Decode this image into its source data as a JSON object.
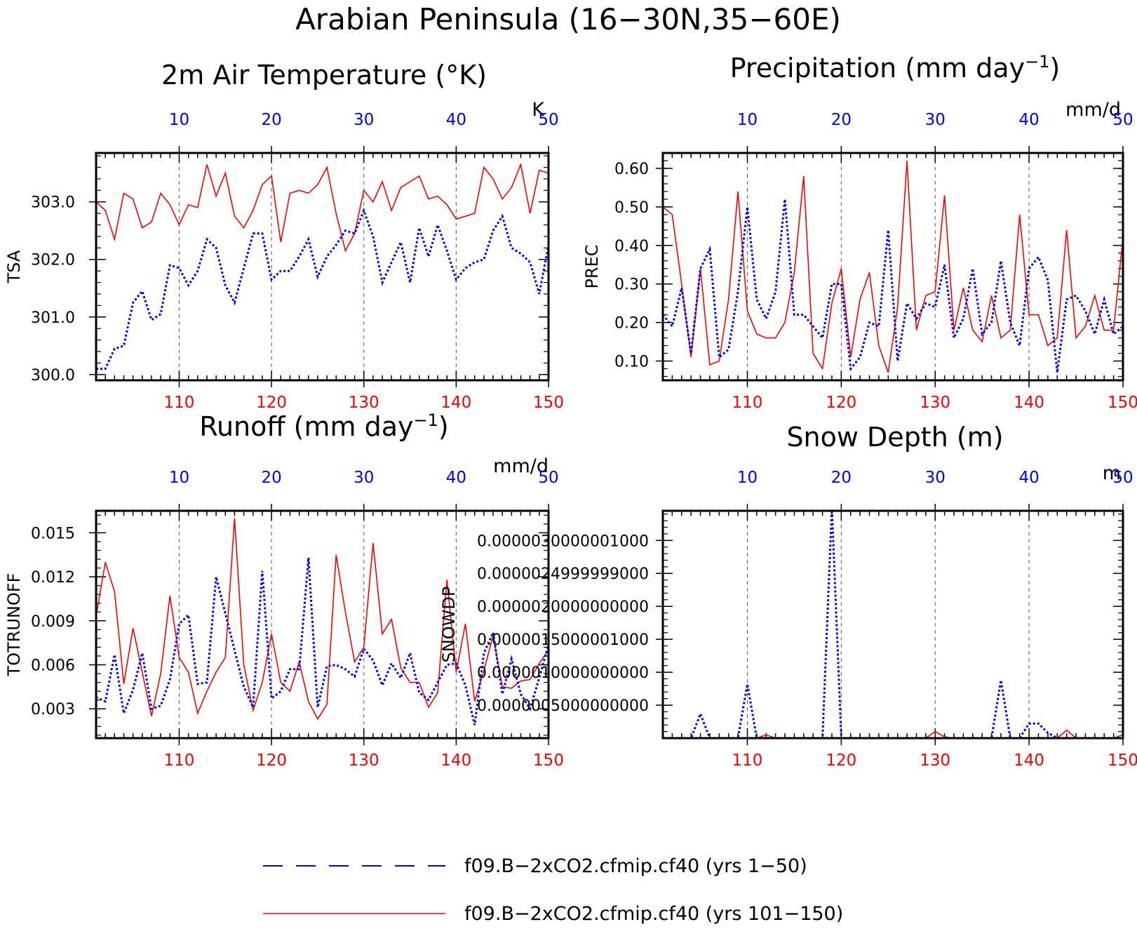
{
  "figure": {
    "title": "Arabian Peninsula (16−30N,35−60E)",
    "colors": {
      "series_a": "#0000ff",
      "series_b": "#ff0000",
      "axes": "#000000"
    }
  },
  "legend": {
    "items": [
      {
        "label": "f09.B−2xCO2.cfmip.cf40 (yrs 1−50)",
        "color": "#0000ff",
        "style": "dashed"
      },
      {
        "label": "f09.B−2xCO2.cfmip.cf40 (yrs 101−150)",
        "color": "#ff0000",
        "style": "solid"
      }
    ]
  },
  "chart_data": [
    {
      "type": "line",
      "title": "2m Air Temperature (°K)",
      "ylabel": "TSA",
      "units": "K",
      "x_bottom": {
        "ticks": [
          "110",
          "120",
          "130",
          "140",
          "150"
        ],
        "range": [
          101,
          150
        ]
      },
      "x_top": {
        "ticks": [
          "10",
          "20",
          "30",
          "40",
          "50"
        ],
        "range": [
          1,
          50
        ]
      },
      "ylim": [
        299.9,
        303.85
      ],
      "yticks": [
        "300.0",
        "301.0",
        "302.0",
        "303.0"
      ],
      "grid": "vertical dashed",
      "series": [
        {
          "values": [
            300.1,
            300.1,
            300.45,
            300.5,
            301.25,
            301.45,
            300.95,
            301.05,
            301.9,
            301.85,
            301.55,
            301.8,
            302.35,
            302.2,
            301.55,
            301.25,
            301.85,
            302.45,
            302.45,
            301.65,
            301.8,
            301.8,
            302.05,
            302.35,
            301.7,
            302.05,
            302.25,
            302.5,
            302.45,
            302.85,
            302.4,
            301.6,
            301.95,
            302.3,
            301.6,
            302.55,
            302.05,
            302.6,
            302.15,
            301.65,
            301.85,
            301.95,
            302.0,
            302.5,
            302.75,
            302.2,
            302.1,
            301.95,
            301.4,
            302.25
          ]
        },
        {
          "values": [
            303.0,
            302.85,
            302.35,
            303.15,
            303.05,
            302.55,
            302.65,
            303.15,
            302.95,
            302.6,
            302.95,
            302.9,
            303.65,
            303.1,
            303.5,
            302.75,
            302.55,
            302.85,
            303.3,
            303.45,
            302.3,
            303.15,
            303.2,
            303.15,
            303.3,
            303.6,
            302.8,
            302.15,
            302.45,
            303.2,
            303.0,
            303.35,
            302.85,
            303.25,
            303.35,
            303.45,
            303.05,
            303.1,
            302.95,
            302.7,
            302.75,
            302.8,
            303.6,
            303.4,
            303.05,
            303.25,
            303.65,
            302.8,
            303.55,
            303.5
          ]
        }
      ]
    },
    {
      "type": "line",
      "title": "Precipitation (mm day",
      "title_sup": "−1",
      "title_end": ")",
      "ylabel": "PREC",
      "units": "mm/d",
      "x_bottom": {
        "ticks": [
          "110",
          "120",
          "130",
          "140",
          "150"
        ],
        "range": [
          101,
          150
        ]
      },
      "x_top": {
        "ticks": [
          "10",
          "20",
          "30",
          "40",
          "50"
        ],
        "range": [
          1,
          50
        ]
      },
      "ylim": [
        0.05,
        0.64
      ],
      "yticks": [
        "0.10",
        "0.20",
        "0.30",
        "0.40",
        "0.50",
        "0.60"
      ],
      "grid": "vertical dashed",
      "series": [
        {
          "values": [
            0.22,
            0.19,
            0.29,
            0.12,
            0.34,
            0.39,
            0.11,
            0.13,
            0.28,
            0.5,
            0.26,
            0.21,
            0.28,
            0.52,
            0.22,
            0.22,
            0.19,
            0.16,
            0.3,
            0.3,
            0.08,
            0.11,
            0.2,
            0.19,
            0.44,
            0.1,
            0.25,
            0.21,
            0.25,
            0.24,
            0.35,
            0.16,
            0.21,
            0.34,
            0.17,
            0.2,
            0.36,
            0.2,
            0.14,
            0.34,
            0.37,
            0.31,
            0.07,
            0.26,
            0.27,
            0.23,
            0.17,
            0.26,
            0.17,
            0.19
          ]
        },
        {
          "values": [
            0.5,
            0.48,
            0.3,
            0.11,
            0.34,
            0.09,
            0.1,
            0.26,
            0.54,
            0.23,
            0.17,
            0.16,
            0.16,
            0.2,
            0.33,
            0.58,
            0.12,
            0.08,
            0.25,
            0.34,
            0.11,
            0.26,
            0.33,
            0.14,
            0.07,
            0.24,
            0.62,
            0.18,
            0.27,
            0.28,
            0.53,
            0.18,
            0.29,
            0.18,
            0.15,
            0.27,
            0.16,
            0.18,
            0.48,
            0.22,
            0.22,
            0.14,
            0.16,
            0.44,
            0.16,
            0.19,
            0.27,
            0.18,
            0.18,
            0.42
          ]
        }
      ]
    },
    {
      "type": "line",
      "title": "Runoff (mm day",
      "title_sup": "−1",
      "title_end": ")",
      "ylabel": "TOTRUNOFF",
      "units": "mm/d",
      "x_bottom": {
        "ticks": [
          "110",
          "120",
          "130",
          "140",
          "150"
        ],
        "range": [
          101,
          150
        ]
      },
      "x_top": {
        "ticks": [
          "10",
          "20",
          "30",
          "40",
          "50"
        ],
        "range": [
          1,
          50
        ]
      },
      "ylim": [
        0.001,
        0.0165
      ],
      "yticks": [
        "0.003",
        "0.006",
        "0.009",
        "0.012",
        "0.015"
      ],
      "grid": "vertical dashed",
      "series": [
        {
          "values": [
            0.0038,
            0.0035,
            0.0067,
            0.0027,
            0.0043,
            0.0068,
            0.003,
            0.0032,
            0.005,
            0.0088,
            0.0094,
            0.0047,
            0.0048,
            0.012,
            0.0095,
            0.007,
            0.0045,
            0.0031,
            0.0124,
            0.0037,
            0.0042,
            0.0057,
            0.0057,
            0.0133,
            0.0031,
            0.0059,
            0.006,
            0.0057,
            0.0052,
            0.0071,
            0.0063,
            0.0046,
            0.0061,
            0.0051,
            0.0068,
            0.0041,
            0.0036,
            0.0048,
            0.006,
            0.0061,
            0.0046,
            0.0019,
            0.0068,
            0.0082,
            0.004,
            0.0064,
            0.004,
            0.003,
            0.0051,
            0.0074
          ]
        },
        {
          "values": [
            0.0093,
            0.013,
            0.011,
            0.0047,
            0.0085,
            0.0055,
            0.0025,
            0.0054,
            0.0107,
            0.0065,
            0.0055,
            0.0027,
            0.0042,
            0.0055,
            0.0065,
            0.016,
            0.006,
            0.0029,
            0.0048,
            0.0081,
            0.0048,
            0.0042,
            0.0062,
            0.0035,
            0.0023,
            0.0033,
            0.0135,
            0.0096,
            0.0062,
            0.0072,
            0.0143,
            0.0081,
            0.0091,
            0.0058,
            0.0048,
            0.0048,
            0.0031,
            0.0041,
            0.0118,
            0.0055,
            0.0088,
            0.0035,
            0.0056,
            0.008,
            0.0045,
            0.0044,
            0.0049,
            0.005,
            0.0061,
            0.007
          ]
        }
      ]
    },
    {
      "type": "line",
      "title": "Snow Depth (m)",
      "ylabel": "SNOWDP",
      "units": "m",
      "x_bottom": {
        "ticks": [
          "110",
          "120",
          "130",
          "140",
          "150"
        ],
        "range": [
          101,
          150
        ]
      },
      "x_top": {
        "ticks": [
          "10",
          "20",
          "30",
          "40",
          "50"
        ],
        "range": [
          1,
          50
        ]
      },
      "ylim": [
        0,
        3.45e-06
      ],
      "yticks": [
        "0.0000005000000000",
        "0.0000010000000000",
        "0.0000015000001000",
        "0.0000020000000000",
        "0.0000024999999000",
        "0.0000030000001000"
      ],
      "grid": "vertical dashed",
      "series": [
        {
          "values": [
            0,
            0,
            0,
            0,
            3.7e-07,
            0,
            0,
            0,
            0,
            8.2e-07,
            0,
            0,
            0,
            0,
            0,
            0,
            0,
            0,
            3.5e-06,
            0,
            0,
            0,
            0,
            0,
            0,
            0,
            0,
            0,
            0,
            0,
            0,
            0,
            0,
            0,
            0,
            0,
            8.8e-07,
            0,
            0,
            2.2e-07,
            2.2e-07,
            8e-08,
            0,
            0,
            0,
            0,
            0,
            0,
            0,
            0
          ]
        },
        {
          "values": [
            0,
            0,
            0,
            0,
            0,
            0,
            0,
            0,
            0,
            0,
            0,
            5e-08,
            0,
            0,
            0,
            0,
            0,
            0,
            0,
            0,
            0,
            0,
            0,
            0,
            0,
            0,
            0,
            0,
            0,
            1e-07,
            2e-08,
            0,
            0,
            0,
            0,
            0,
            0,
            0,
            0,
            0,
            0,
            0,
            0,
            1.2e-07,
            0,
            0,
            0,
            0,
            0,
            5e-08
          ]
        }
      ]
    }
  ]
}
